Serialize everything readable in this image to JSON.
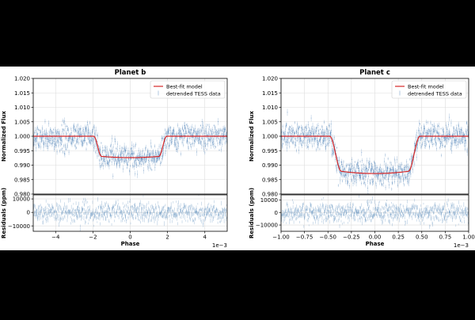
{
  "colors": {
    "background": "#000000",
    "figure": "#ffffff",
    "data": "#4a7fb5",
    "model": "#d62728",
    "grid": "#dddddd",
    "axis": "#000000"
  },
  "chart_data": [
    {
      "type": "scatter",
      "title": "Planet b",
      "xlabel": "Phase",
      "ylabel": "Normalized Flux",
      "residual_ylabel": "Residuals (ppm)",
      "x_offset_label": "1e−3",
      "xlim": [
        -5.2,
        5.2
      ],
      "ylim": [
        0.98,
        1.02
      ],
      "residual_ylim": [
        -14000,
        13000
      ],
      "xticks": [
        -4,
        -2,
        0,
        2,
        4
      ],
      "xtick_labels": [
        "−4",
        "−2",
        "0",
        "2",
        "4"
      ],
      "yticks": [
        0.98,
        0.985,
        0.99,
        0.995,
        1.0,
        1.005,
        1.01,
        1.015,
        1.02
      ],
      "ytick_labels": [
        "0.980",
        "0.985",
        "0.990",
        "0.995",
        "1.000",
        "1.005",
        "1.010",
        "1.015",
        "1.020"
      ],
      "residual_yticks": [
        -10000,
        0,
        10000
      ],
      "residual_ytick_labels": [
        "−10000",
        "0",
        "10000"
      ],
      "grid": true,
      "legend_position": "top-right",
      "legend": {
        "model": "Best-fit model",
        "data": "detrended TESS data"
      },
      "transit": {
        "depth": 0.0067,
        "limb_extra": 0.0007,
        "t1": 1.95,
        "t2": 1.55,
        "scatter_sigma": 0.004,
        "residual_sigma": 3500
      },
      "model_curve": {
        "x": [
          -5.2,
          -2.2,
          -1.95,
          -1.8,
          -1.65,
          -1.55,
          -1.2,
          -0.8,
          -0.4,
          0.0,
          0.4,
          0.8,
          1.2,
          1.55,
          1.65,
          1.8,
          1.95,
          2.2,
          5.2
        ],
        "y": [
          1.0,
          1.0,
          1.0,
          0.9975,
          0.9955,
          0.995,
          0.9943,
          0.9938,
          0.9934,
          0.9933,
          0.9934,
          0.9938,
          0.9943,
          0.995,
          0.9955,
          0.9975,
          1.0,
          1.0,
          1.0
        ]
      }
    },
    {
      "type": "scatter",
      "title": "Planet c",
      "xlabel": "Phase",
      "ylabel": "Normalized Flux",
      "residual_ylabel": "Residuals (ppm)",
      "x_offset_label": "1e−3",
      "xlim": [
        -1.0,
        1.0
      ],
      "ylim": [
        0.98,
        1.02
      ],
      "residual_ylim": [
        -15000,
        14000
      ],
      "xticks": [
        -1.0,
        -0.75,
        -0.5,
        -0.25,
        0.0,
        0.25,
        0.5,
        0.75,
        1.0
      ],
      "xtick_labels": [
        "−1.00",
        "−0.75",
        "−0.50",
        "−0.25",
        "0.00",
        "0.25",
        "0.50",
        "0.75",
        "1.00"
      ],
      "yticks": [
        0.98,
        0.985,
        0.99,
        0.995,
        1.0,
        1.005,
        1.01,
        1.015,
        1.02
      ],
      "ytick_labels": [
        "0.980",
        "0.985",
        "0.990",
        "0.995",
        "1.000",
        "1.005",
        "1.010",
        "1.015",
        "1.020"
      ],
      "residual_yticks": [
        -10000,
        0,
        10000
      ],
      "residual_ytick_labels": [
        "−10000",
        "0",
        "10000"
      ],
      "grid": true,
      "legend_position": "top-right",
      "legend": {
        "model": "Best-fit model",
        "data": "detrended TESS data"
      },
      "transit": {
        "depth": 0.0115,
        "limb_extra": 0.0014,
        "t1": 0.48,
        "t2": 0.36,
        "scatter_sigma": 0.004,
        "residual_sigma": 4000
      },
      "model_curve": {
        "x": [
          -1.0,
          -0.55,
          -0.48,
          -0.44,
          -0.4,
          -0.36,
          -0.3,
          -0.2,
          -0.1,
          0.0,
          0.1,
          0.2,
          0.3,
          0.36,
          0.4,
          0.44,
          0.48,
          0.55,
          1.0
        ],
        "y": [
          1.0,
          1.0,
          1.0,
          0.995,
          0.9905,
          0.9888,
          0.988,
          0.9876,
          0.9872,
          0.9871,
          0.9872,
          0.9876,
          0.988,
          0.9888,
          0.9905,
          0.995,
          1.0,
          1.0,
          1.0
        ]
      }
    }
  ]
}
